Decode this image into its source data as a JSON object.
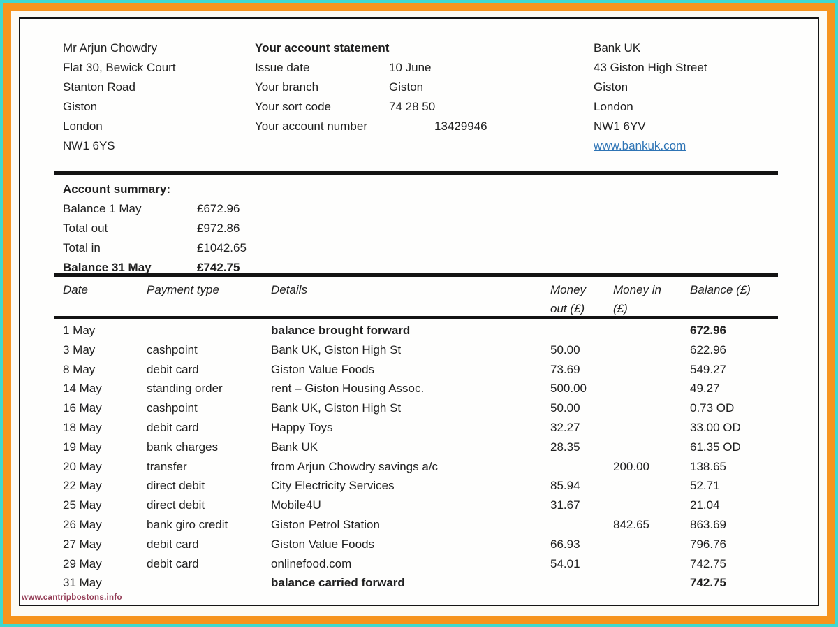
{
  "colors": {
    "outer_border": "#3fd8cf",
    "frame": "#f6941d",
    "text": "#1f1f1f",
    "link": "#2e74b5",
    "watermark": "#943d56",
    "rule": "#131313"
  },
  "customer": {
    "lines": [
      "Mr Arjun Chowdry",
      "Flat 30, Bewick Court",
      "Stanton Road",
      "Giston",
      "London",
      "NW1 6YS"
    ]
  },
  "statement": {
    "title": "Your account statement",
    "fields": [
      {
        "label": "Issue date",
        "value": "10 June"
      },
      {
        "label": "Your branch",
        "value": "Giston"
      },
      {
        "label": "Your sort code",
        "value": "74 28 50"
      },
      {
        "label": "Your account number",
        "value": "13429946"
      }
    ]
  },
  "bank": {
    "lines": [
      "Bank UK",
      "43 Giston High Street",
      "Giston",
      "London",
      "NW1 6YV"
    ],
    "website": "www.bankuk.com"
  },
  "summary": {
    "heading": "Account summary:",
    "rows": [
      {
        "label": "Balance 1 May",
        "value": "£672.96"
      },
      {
        "label": "Total out",
        "value": "£972.86"
      },
      {
        "label": "Total in",
        "value": "£1042.65"
      },
      {
        "label": "Balance 31 May",
        "value": "£742.75"
      }
    ]
  },
  "transactions": {
    "header": {
      "date": "Date",
      "payment_type": "Payment type",
      "details": "Details",
      "money_out_line1": "Money",
      "money_out_line2": "out (£)",
      "money_in_line1": "Money in",
      "money_in_line2": "(£)",
      "balance": "Balance (£)"
    },
    "rows": [
      {
        "date": "1 May",
        "payment_type": "",
        "details": "balance brought forward",
        "money_out": "",
        "money_in": "",
        "balance": "672.96",
        "emphasis": true
      },
      {
        "date": "3 May",
        "payment_type": "cashpoint",
        "details": "Bank UK, Giston High St",
        "money_out": "50.00",
        "money_in": "",
        "balance": "622.96",
        "emphasis": false
      },
      {
        "date": "8 May",
        "payment_type": "debit card",
        "details": "Giston Value Foods",
        "money_out": "73.69",
        "money_in": "",
        "balance": "549.27",
        "emphasis": false
      },
      {
        "date": "14 May",
        "payment_type": "standing order",
        "details": "rent – Giston Housing Assoc.",
        "money_out": "500.00",
        "money_in": "",
        "balance": "49.27",
        "emphasis": false
      },
      {
        "date": "16 May",
        "payment_type": "cashpoint",
        "details": "Bank UK, Giston High St",
        "money_out": "50.00",
        "money_in": "",
        "balance": "0.73 OD",
        "emphasis": false
      },
      {
        "date": "18 May",
        "payment_type": "debit card",
        "details": "Happy Toys",
        "money_out": "32.27",
        "money_in": "",
        "balance": "33.00 OD",
        "emphasis": false
      },
      {
        "date": "19 May",
        "payment_type": "bank charges",
        "details": "Bank UK",
        "money_out": "28.35",
        "money_in": "",
        "balance": "61.35 OD",
        "emphasis": false
      },
      {
        "date": "20 May",
        "payment_type": "transfer",
        "details": "from Arjun Chowdry savings a/c",
        "money_out": "",
        "money_in": "200.00",
        "balance": "138.65",
        "emphasis": false
      },
      {
        "date": "22 May",
        "payment_type": "direct debit",
        "details": "City Electricity Services",
        "money_out": "85.94",
        "money_in": "",
        "balance": "52.71",
        "emphasis": false
      },
      {
        "date": "25 May",
        "payment_type": "direct debit",
        "details": "Mobile4U",
        "money_out": "31.67",
        "money_in": "",
        "balance": "21.04",
        "emphasis": false
      },
      {
        "date": "26 May",
        "payment_type": "bank giro credit",
        "details": "Giston Petrol Station",
        "money_out": "",
        "money_in": "842.65",
        "balance": "863.69",
        "emphasis": false
      },
      {
        "date": "27 May",
        "payment_type": "debit card",
        "details": "Giston Value Foods",
        "money_out": "66.93",
        "money_in": "",
        "balance": "796.76",
        "emphasis": false
      },
      {
        "date": "29 May",
        "payment_type": "debit card",
        "details": "onlinefood.com",
        "money_out": "54.01",
        "money_in": "",
        "balance": "742.75",
        "emphasis": false
      },
      {
        "date": "31 May",
        "payment_type": "",
        "details": "balance carried forward",
        "money_out": "",
        "money_in": "",
        "balance": "742.75",
        "emphasis": true
      }
    ]
  },
  "watermark": "www.cantripbostons.info"
}
